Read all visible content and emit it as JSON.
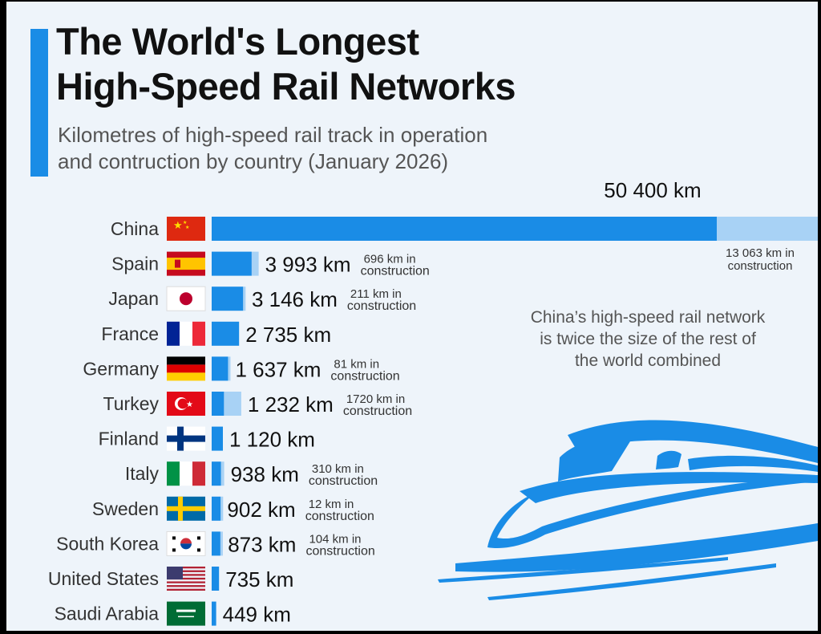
{
  "header": {
    "title_line1": "The World's Longest",
    "title_line2": "High-Speed Rail Networks",
    "subtitle_line1": "Kilometres of high-speed rail track in operation",
    "subtitle_line2": "and contruction by country (January 2026)"
  },
  "callout": {
    "line1": "China’s high-speed rail network",
    "line2": "is twice the size of the rest of",
    "line3": "the world combined"
  },
  "colors": {
    "operation": "#1a8ce6",
    "construction": "#a8d2f5",
    "accent": "#1a8ce6"
  },
  "chart_data": {
    "type": "bar",
    "orientation": "horizontal",
    "stacked": true,
    "categories": [
      "China",
      "Spain",
      "Japan",
      "France",
      "Germany",
      "Turkey",
      "Finland",
      "Italy",
      "Sweden",
      "South Korea",
      "United States",
      "Saudi Arabia"
    ],
    "series": [
      {
        "values": [
          50400,
          3993,
          3146,
          2735,
          1637,
          1232,
          1120,
          938,
          902,
          873,
          735,
          449
        ]
      },
      {
        "values": [
          13063,
          696,
          211,
          0,
          81,
          1720,
          0,
          310,
          12,
          104,
          0,
          0
        ]
      }
    ],
    "value_labels": [
      "50 400 km",
      "3 993 km",
      "3 146 km",
      "2 735 km",
      "1 637 km",
      "1 232 km",
      "1 120 km",
      "938 km",
      "902 km",
      "873 km",
      "735 km",
      "449 km"
    ],
    "construction_labels": [
      [
        "13 063 km in",
        "construction"
      ],
      [
        "696 km in",
        "construction"
      ],
      [
        "211 km in",
        "construction"
      ],
      null,
      [
        "81 km in",
        "construction"
      ],
      [
        "1720 km in",
        "construction"
      ],
      null,
      [
        "310 km in",
        "construction"
      ],
      [
        "12 km in",
        "construction"
      ],
      [
        "104 km in",
        "construction"
      ],
      null,
      null
    ],
    "flags": [
      "china-flag",
      "spain-flag",
      "japan-flag",
      "france-flag",
      "germany-flag",
      "turkey-flag",
      "finland-flag",
      "italy-flag",
      "sweden-flag",
      "south-korea-flag",
      "united-states-flag",
      "saudi-arabia-flag"
    ]
  }
}
